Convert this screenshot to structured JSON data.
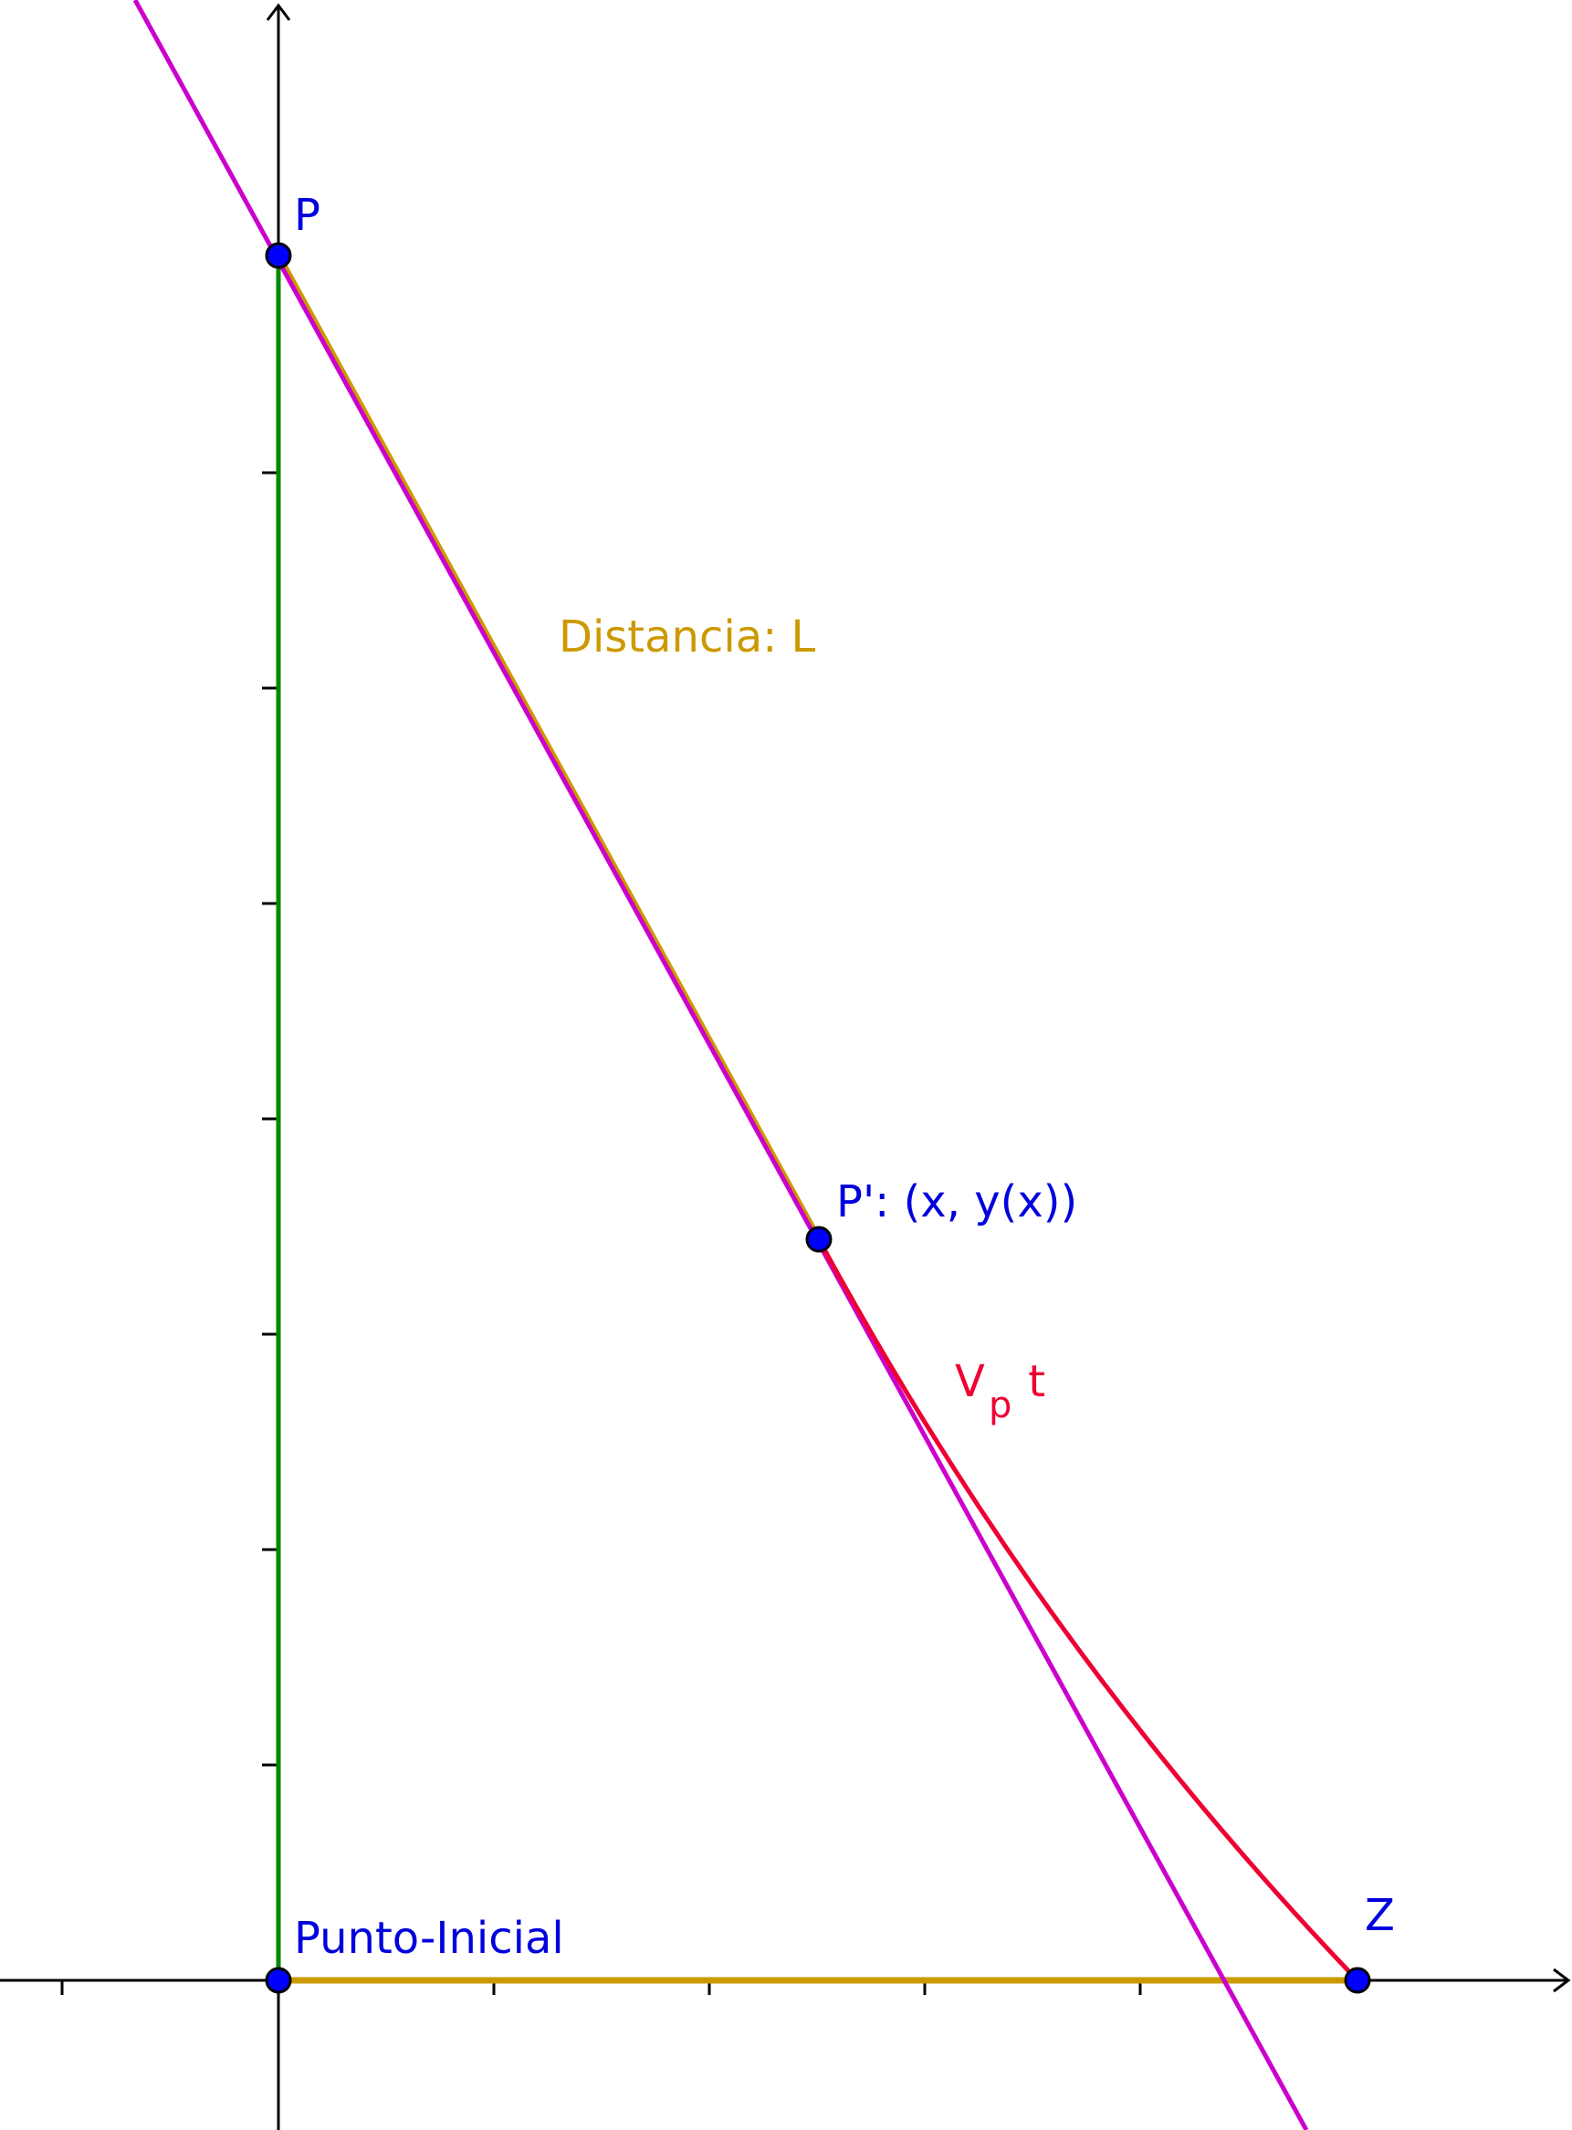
{
  "labels": {
    "p": "P",
    "p_prime": "P': (x, y(x))",
    "z": "Z",
    "origin": "Punto-Inicial",
    "distance": "Distancia: L",
    "speed_main": "V",
    "speed_sub": "p",
    "speed_tail": " t"
  },
  "colors": {
    "axis": "#000000",
    "green_segment": "#008800",
    "gold_segment": "#cc9900",
    "magenta_line": "#cc00cc",
    "red_curve": "#ee0033",
    "point_fill": "#0000ff",
    "point_label": "#0000dd",
    "distance_label": "#cc9900",
    "speed_label": "#ee0033"
  }
}
